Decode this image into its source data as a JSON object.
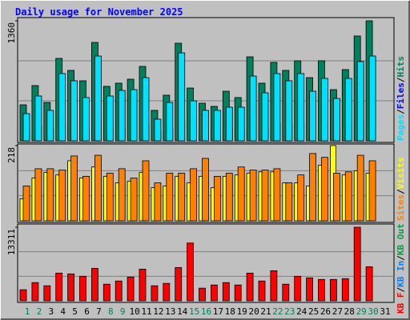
{
  "title": "Daily usage for November 2025",
  "separator": "/",
  "highlight_categories": [
    0,
    1,
    7,
    8,
    14,
    15,
    21,
    22,
    28,
    29
  ],
  "highlight_color": "#00805c",
  "chart_data": [
    {
      "type": "bar",
      "ylim": [
        0,
        1360
      ],
      "yticks": [
        1360
      ],
      "series": [
        {
          "name": "Hits",
          "color": "#00805c",
          "values": [
            408,
            626,
            435,
            934,
            798,
            680,
            1115,
            617,
            653,
            698,
            843,
            345,
            517,
            1106,
            598,
            426,
            390,
            562,
            490,
            952,
            653,
            889,
            798,
            907,
            716,
            907,
            580,
            807,
            1188,
            1360,
            null
          ]
        },
        {
          "name": "Files",
          "color": "#0000ff",
          "values": [
            120,
            180,
            130,
            200,
            190,
            160,
            230,
            170,
            160,
            170,
            190,
            110,
            140,
            220,
            150,
            120,
            120,
            140,
            130,
            210,
            160,
            200,
            190,
            200,
            170,
            190,
            150,
            180,
            220,
            230,
            null
          ]
        },
        {
          "name": "Pages",
          "color": "#00e0ff",
          "values": [
            308,
            508,
            345,
            762,
            680,
            490,
            961,
            508,
            571,
            580,
            716,
            245,
            435,
            997,
            453,
            345,
            345,
            381,
            381,
            734,
            544,
            762,
            680,
            762,
            562,
            707,
            480,
            707,
            898,
            961,
            null
          ]
        }
      ]
    },
    {
      "type": "bar",
      "ylim": [
        0,
        218
      ],
      "yticks": [
        218
      ],
      "series": [
        {
          "name": "Visits",
          "color": "#ffff00",
          "values": [
            64,
            124,
            140,
            133,
            174,
            124,
            156,
            129,
            110,
            115,
            140,
            96,
            101,
            129,
            110,
            129,
            96,
            129,
            133,
            138,
            142,
            142,
            110,
            110,
            101,
            161,
            218,
            133,
            145,
            138,
            null
          ]
        },
        {
          "name": "Sites",
          "color": "#ff8000",
          "values": [
            101,
            151,
            151,
            147,
            188,
            129,
            190,
            138,
            151,
            124,
            174,
            110,
            138,
            138,
            151,
            181,
            129,
            138,
            156,
            147,
            147,
            151,
            110,
            133,
            195,
            184,
            138,
            142,
            190,
            174,
            null
          ]
        }
      ]
    },
    {
      "type": "bar",
      "ylim": [
        0,
        13311
      ],
      "yticks": [
        13311
      ],
      "categories": [
        "1",
        "2",
        "3",
        "4",
        "5",
        "6",
        "7",
        "8",
        "9",
        "10",
        "11",
        "12",
        "13",
        "14",
        "15",
        "16",
        "17",
        "18",
        "19",
        "20",
        "21",
        "22",
        "23",
        "24",
        "25",
        "26",
        "27",
        "28",
        "29",
        "30",
        "31"
      ],
      "series": [
        {
          "name": "KB F",
          "color": "#ff0000",
          "values": [
            2004,
            3292,
            2719,
            5009,
            4866,
            4437,
            5868,
            3006,
            3578,
            4294,
            5725,
            2719,
            3149,
            6011,
            10448,
            2290,
            2863,
            3292,
            2863,
            5009,
            3578,
            5439,
            3006,
            4437,
            4151,
            3864,
            3864,
            4008,
            13311,
            6154,
            null
          ]
        }
      ],
      "extra_legend": [
        {
          "name": "KB In",
          "color": "#0080ff"
        },
        {
          "name": "KB Out",
          "color": "#00a040"
        }
      ]
    }
  ]
}
